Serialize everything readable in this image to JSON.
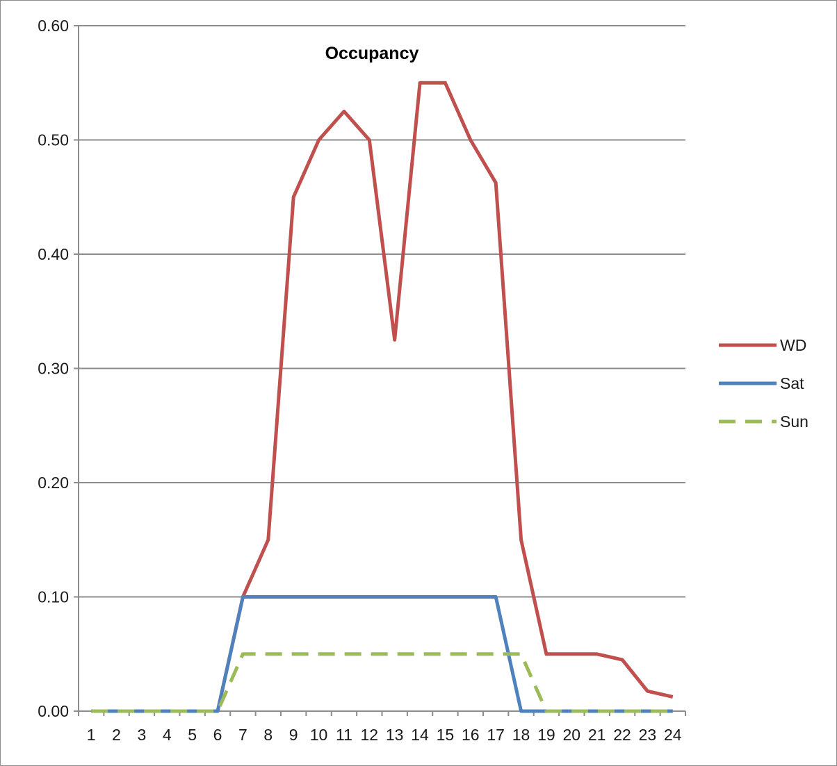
{
  "chart_data": {
    "type": "line",
    "title": "Occupancy",
    "xlabel": "",
    "ylabel": "",
    "categories": [
      "1",
      "2",
      "3",
      "4",
      "5",
      "6",
      "7",
      "8",
      "9",
      "10",
      "11",
      "12",
      "13",
      "14",
      "15",
      "16",
      "17",
      "18",
      "19",
      "20",
      "21",
      "22",
      "23",
      "24"
    ],
    "y_ticks": [
      "0.00",
      "0.10",
      "0.20",
      "0.30",
      "0.40",
      "0.50",
      "0.60"
    ],
    "ylim": [
      0,
      0.6
    ],
    "grid": "horizontal",
    "legend_position": "right",
    "series": [
      {
        "name": "WD",
        "color": "#c0504d",
        "dash": "solid",
        "values": [
          0,
          0,
          0,
          0,
          0,
          0,
          0.1,
          0.15,
          0.45,
          0.5,
          0.525,
          0.5,
          0.325,
          0.55,
          0.55,
          0.5,
          0.4625,
          0.15,
          0.05,
          0.05,
          0.05,
          0.045,
          0.0175,
          0.0125
        ]
      },
      {
        "name": "Sat",
        "color": "#4f81bd",
        "dash": "solid",
        "values": [
          0,
          0,
          0,
          0,
          0,
          0,
          0.1,
          0.1,
          0.1,
          0.1,
          0.1,
          0.1,
          0.1,
          0.1,
          0.1,
          0.1,
          0.1,
          0,
          0,
          0,
          0,
          0,
          0,
          0
        ]
      },
      {
        "name": "Sun",
        "color": "#9bbb59",
        "dash": "dashed",
        "values": [
          0,
          0,
          0,
          0,
          0,
          0,
          0.05,
          0.05,
          0.05,
          0.05,
          0.05,
          0.05,
          0.05,
          0.05,
          0.05,
          0.05,
          0.05,
          0.05,
          0,
          0,
          0,
          0,
          0,
          0
        ]
      }
    ]
  }
}
